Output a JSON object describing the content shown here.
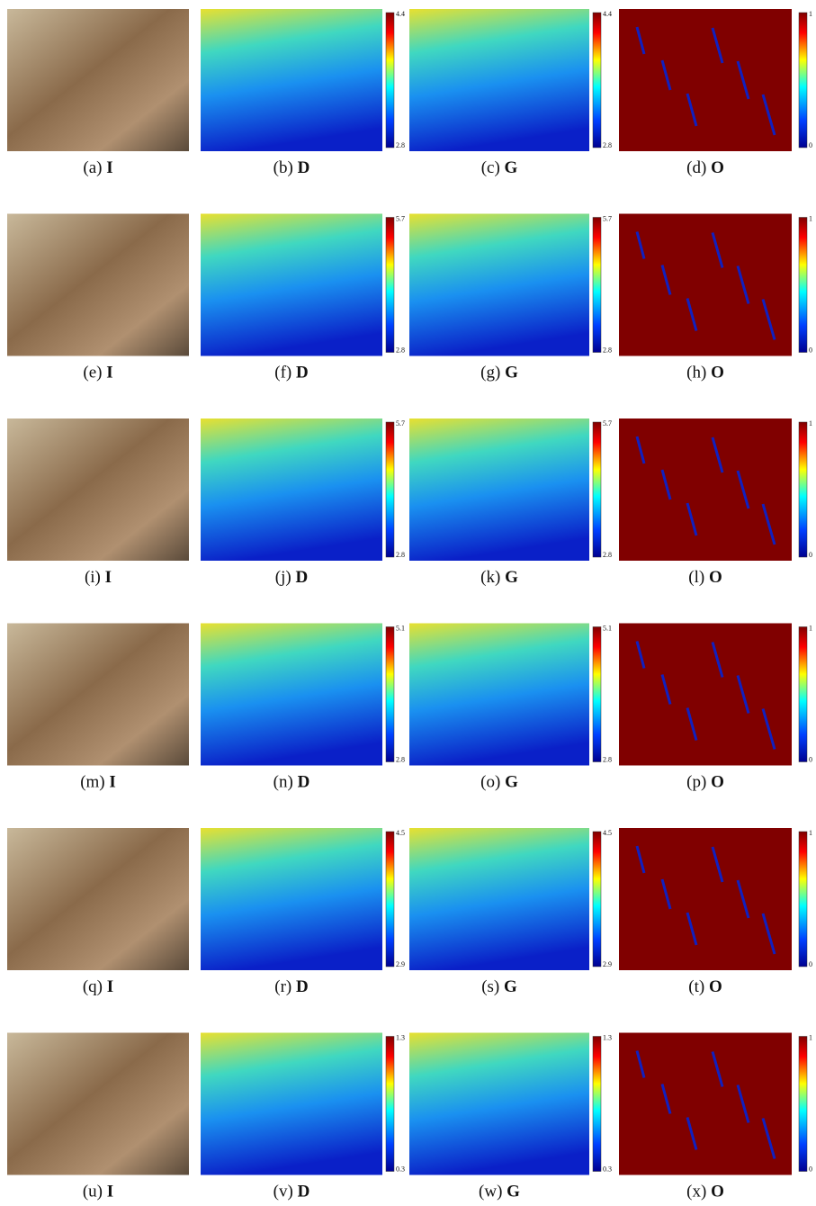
{
  "figure": {
    "rows": [
      {
        "panels": [
          {
            "label": "(a)",
            "symbol": "I"
          },
          {
            "label": "(b)",
            "symbol": "D",
            "colorbar": {
              "max": 4.4,
              "min": 2.8
            }
          },
          {
            "label": "(c)",
            "symbol": "G",
            "colorbar": {
              "max": 4.4,
              "min": 2.8
            }
          },
          {
            "label": "(d)",
            "symbol": "O",
            "colorbar": {
              "max": 1,
              "min": 0
            }
          }
        ]
      },
      {
        "panels": [
          {
            "label": "(e)",
            "symbol": "I"
          },
          {
            "label": "(f)",
            "symbol": "D",
            "colorbar": {
              "max": 5.7,
              "min": 2.8
            }
          },
          {
            "label": "(g)",
            "symbol": "G",
            "colorbar": {
              "max": 5.7,
              "min": 2.8
            }
          },
          {
            "label": "(h)",
            "symbol": "O",
            "colorbar": {
              "max": 1,
              "min": 0
            }
          }
        ]
      },
      {
        "panels": [
          {
            "label": "(i)",
            "symbol": "I"
          },
          {
            "label": "(j)",
            "symbol": "D",
            "colorbar": {
              "max": 5.7,
              "min": 2.8
            }
          },
          {
            "label": "(k)",
            "symbol": "G",
            "colorbar": {
              "max": 5.7,
              "min": 2.8
            }
          },
          {
            "label": "(l)",
            "symbol": "O",
            "colorbar": {
              "max": 1,
              "min": 0
            }
          }
        ]
      },
      {
        "panels": [
          {
            "label": "(m)",
            "symbol": "I"
          },
          {
            "label": "(n)",
            "symbol": "D",
            "colorbar": {
              "max": 5.1,
              "min": 2.8
            }
          },
          {
            "label": "(o)",
            "symbol": "G",
            "colorbar": {
              "max": 5.1,
              "min": 2.8
            }
          },
          {
            "label": "(p)",
            "symbol": "O",
            "colorbar": {
              "max": 1,
              "min": 0
            }
          }
        ]
      },
      {
        "panels": [
          {
            "label": "(q)",
            "symbol": "I"
          },
          {
            "label": "(r)",
            "symbol": "D",
            "colorbar": {
              "max": 4.5,
              "min": 2.9
            }
          },
          {
            "label": "(s)",
            "symbol": "G",
            "colorbar": {
              "max": 4.5,
              "min": 2.9
            }
          },
          {
            "label": "(t)",
            "symbol": "O",
            "colorbar": {
              "max": 1,
              "min": 0
            }
          }
        ]
      },
      {
        "panels": [
          {
            "label": "(u)",
            "symbol": "I"
          },
          {
            "label": "(v)",
            "symbol": "D",
            "colorbar": {
              "max": 1.3,
              "min": 0.3
            }
          },
          {
            "label": "(w)",
            "symbol": "G",
            "colorbar": {
              "max": 1.3,
              "min": 0.3
            }
          },
          {
            "label": "(x)",
            "symbol": "O",
            "colorbar": {
              "max": 1,
              "min": 0
            }
          }
        ]
      }
    ]
  }
}
